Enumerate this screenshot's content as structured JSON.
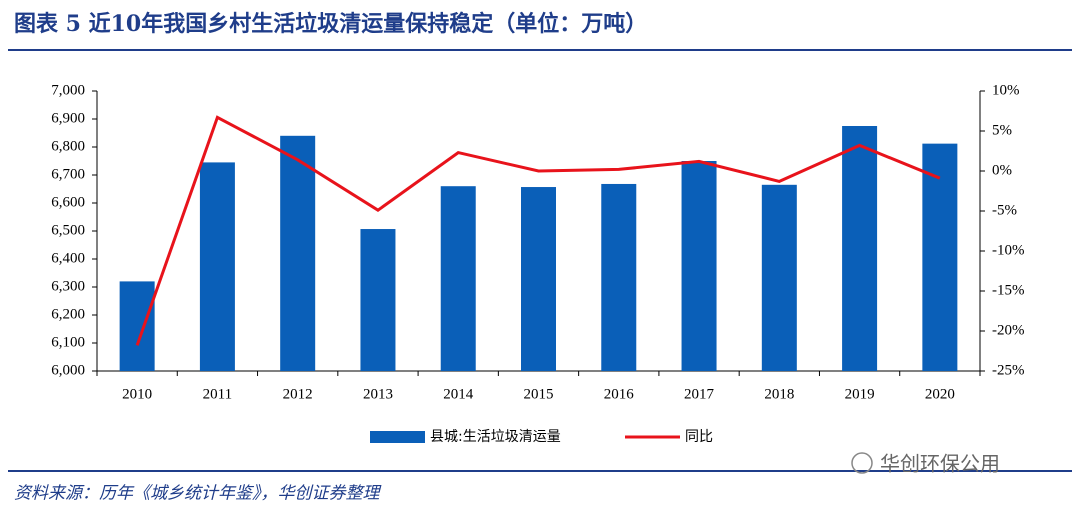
{
  "chart_data": {
    "type": "bar",
    "title": "图表 5   近10年我国乡村生活垃圾清运量保持稳定（单位：万吨）",
    "categories": [
      "2010",
      "2011",
      "2012",
      "2013",
      "2014",
      "2015",
      "2016",
      "2017",
      "2018",
      "2019",
      "2020"
    ],
    "series": [
      {
        "name": "县城:生活垃圾清运量",
        "type": "bar",
        "color": "#0a5fb8",
        "values": [
          6320,
          6745,
          6840,
          6507,
          6660,
          6657,
          6668,
          6750,
          6665,
          6875,
          6812
        ]
      },
      {
        "name": "同比",
        "type": "line",
        "axis": "y2",
        "color": "#e8131b",
        "values": [
          -21.8,
          6.7,
          1.4,
          -4.9,
          2.3,
          0,
          0.2,
          1.2,
          -1.3,
          3.2,
          -0.9
        ]
      }
    ],
    "ylim": [
      6000,
      7000
    ],
    "yticks": [
      {
        "value": 6000,
        "label": "6,000"
      },
      {
        "value": 6100,
        "label": "6,100"
      },
      {
        "value": 6200,
        "label": "6,200"
      },
      {
        "value": 6300,
        "label": "6,300"
      },
      {
        "value": 6400,
        "label": "6,400"
      },
      {
        "value": 6500,
        "label": "6,500"
      },
      {
        "value": 6600,
        "label": "6,600"
      },
      {
        "value": 6700,
        "label": "6,700"
      },
      {
        "value": 6800,
        "label": "6,800"
      },
      {
        "value": 6900,
        "label": "6,900"
      },
      {
        "value": 7000,
        "label": "7,000"
      }
    ],
    "y2lim": [
      -25,
      10
    ],
    "y2ticks": [
      {
        "value": -25,
        "label": "-25%"
      },
      {
        "value": -20,
        "label": "-20%"
      },
      {
        "value": -15,
        "label": "-15%"
      },
      {
        "value": -10,
        "label": "-10%"
      },
      {
        "value": -5,
        "label": "-5%"
      },
      {
        "value": 0,
        "label": "0%"
      },
      {
        "value": 5,
        "label": "5%"
      },
      {
        "value": 10,
        "label": "10%"
      }
    ],
    "grid": false,
    "legend": "bottom",
    "source": "资料来源：历年《城乡统计年鉴》，华创证券整理",
    "watermark": "华创环保公用"
  }
}
